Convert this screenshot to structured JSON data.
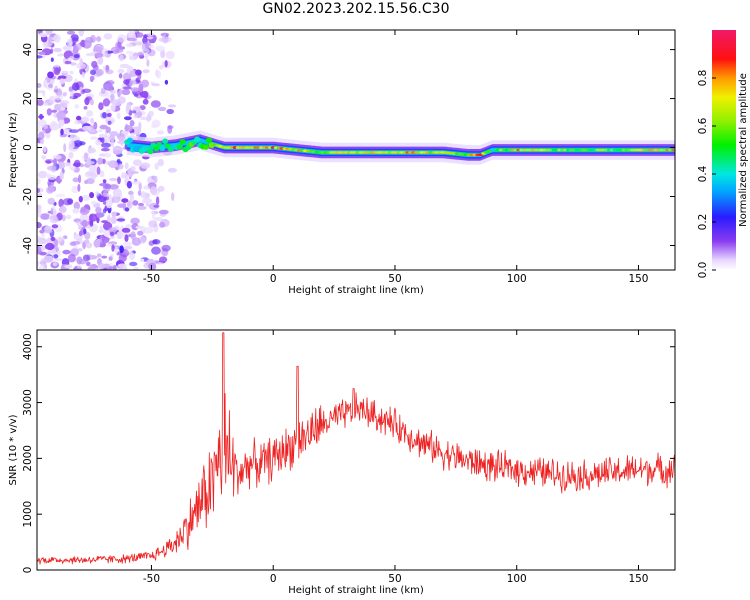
{
  "title": "GN02.2023.202.15.56.C30",
  "colors": {
    "snr_line": "#ee2222",
    "background": "#ffffff"
  },
  "chart_data": [
    {
      "type": "heatmap",
      "xlabel": "Height of straight line (km)",
      "ylabel": "Frequency (Hz)",
      "xlim": [
        -97,
        165
      ],
      "ylim": [
        -50,
        48
      ],
      "xticks": [
        -50,
        0,
        50,
        100,
        150
      ],
      "yticks": [
        -40,
        -20,
        0,
        20,
        40
      ],
      "colorbar": {
        "label": "Normalized spectral amplitude",
        "range": [
          0.0,
          1.0
        ],
        "ticks": [
          "0.0",
          "0.2",
          "0.4",
          "0.6",
          "0.8"
        ],
        "colormap": "rainbow (white-purple-blue-cyan-green-yellow-red-magenta)"
      },
      "ridge": {
        "description": "dominant frequency track",
        "x": [
          -60,
          -50,
          -40,
          -30,
          -20,
          0,
          20,
          40,
          60,
          70,
          80,
          85,
          90,
          100,
          120,
          140,
          165
        ],
        "frequency": [
          1,
          0,
          1,
          3,
          0,
          0,
          -2,
          -2,
          -2,
          -2,
          -3,
          -3,
          -1,
          -1,
          -1,
          -1,
          -1
        ],
        "peak_amplitude": [
          0.45,
          0.45,
          0.5,
          0.55,
          0.85,
          0.85,
          0.65,
          0.8,
          0.8,
          0.65,
          0.7,
          0.9,
          0.5,
          0.8,
          0.6,
          0.6,
          0.85
        ]
      },
      "noise_region": {
        "x_range": [
          -97,
          -40
        ],
        "amplitude": "0.05-0.25"
      }
    },
    {
      "type": "line",
      "xlabel": "Height of straight line (km)",
      "ylabel": "SNR (10 * v/v)",
      "xlim": [
        -97,
        165
      ],
      "ylim": [
        0,
        4300
      ],
      "xticks": [
        -50,
        0,
        50,
        100,
        150
      ],
      "yticks": [
        0,
        1000,
        2000,
        3000,
        4000
      ],
      "series": [
        {
          "x": [
            -97,
            -80,
            -60,
            -50,
            -45,
            -40,
            -35,
            -30,
            -25,
            -22,
            -20,
            -15,
            -10,
            -5,
            0,
            10,
            20,
            30,
            35,
            40,
            50,
            60,
            70,
            80,
            90,
            100,
            110,
            120,
            130,
            140,
            150,
            160,
            165
          ],
          "values": [
            180,
            180,
            200,
            250,
            350,
            500,
            800,
            1200,
            1600,
            2000,
            2200,
            1700,
            1900,
            1900,
            2000,
            2300,
            2600,
            2800,
            2900,
            2800,
            2600,
            2300,
            2100,
            1950,
            1850,
            1800,
            1750,
            1700,
            1700,
            1750,
            1800,
            1800,
            1800
          ],
          "spikes": [
            {
              "x": -20.5,
              "value": 4250
            },
            {
              "x": 10,
              "value": 3650
            },
            {
              "x": 33,
              "value": 3250
            }
          ]
        }
      ]
    }
  ]
}
